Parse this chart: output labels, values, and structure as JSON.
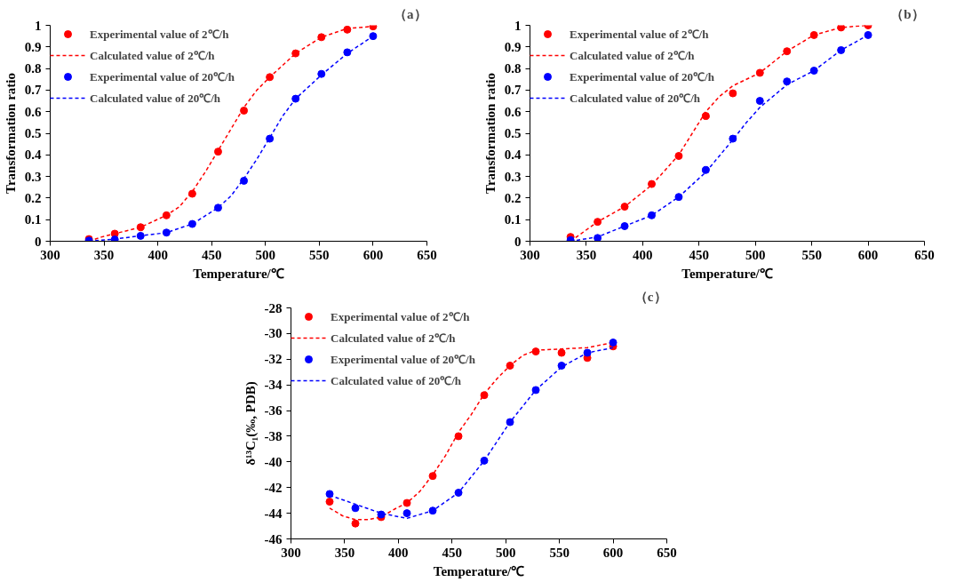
{
  "chart_data": [
    {
      "type": "line",
      "xlabel": "Temperature/℃",
      "ylabel": "Transformation ratio",
      "annotations": [
        "（a）"
      ],
      "xlim": [
        300,
        650
      ],
      "xticks": [
        300,
        350,
        400,
        450,
        500,
        550,
        600,
        650
      ],
      "ylim": [
        0,
        1
      ],
      "yticks": [
        0,
        0.1,
        0.2,
        0.3,
        0.4,
        0.5,
        0.6,
        0.7,
        0.8,
        0.9,
        1
      ],
      "legend": "top left",
      "series": [
        {
          "name": "Experimental value of 2℃/h",
          "type": "scatter",
          "marker": "circle",
          "color": "#ff0000",
          "x": [
            336,
            360,
            384,
            408,
            432,
            456,
            480,
            504,
            528,
            552,
            576,
            600
          ],
          "values": [
            0.01,
            0.035,
            0.065,
            0.12,
            0.22,
            0.415,
            0.605,
            0.76,
            0.87,
            0.945,
            0.98,
            0.995
          ]
        },
        {
          "name": "Calculated value of 2℃/h",
          "line_style": "dashed",
          "color": "#ff0000",
          "x": [
            336,
            348,
            360,
            384,
            408,
            420,
            432,
            444,
            456,
            468,
            480,
            492,
            504,
            528,
            552,
            576,
            600
          ],
          "values": [
            0.0,
            0.02,
            0.035,
            0.065,
            0.12,
            0.16,
            0.23,
            0.32,
            0.42,
            0.52,
            0.62,
            0.7,
            0.76,
            0.87,
            0.945,
            0.985,
            0.995
          ]
        },
        {
          "name": "Experimental value of 20℃/h",
          "type": "scatter",
          "marker": "circle",
          "color": "#0000ff",
          "x": [
            336,
            360,
            384,
            408,
            432,
            456,
            480,
            504,
            528,
            552,
            576,
            600
          ],
          "values": [
            0.003,
            0.008,
            0.025,
            0.04,
            0.08,
            0.155,
            0.28,
            0.475,
            0.66,
            0.775,
            0.875,
            0.95
          ]
        },
        {
          "name": "Calculated value of 20℃/h",
          "line_style": "dashed",
          "color": "#0000ff",
          "x": [
            336,
            360,
            384,
            408,
            432,
            456,
            468,
            480,
            492,
            504,
            516,
            528,
            552,
            576,
            600
          ],
          "values": [
            0.0,
            0.01,
            0.025,
            0.04,
            0.08,
            0.155,
            0.21,
            0.29,
            0.38,
            0.48,
            0.58,
            0.66,
            0.77,
            0.87,
            0.95
          ]
        }
      ]
    },
    {
      "type": "line",
      "xlabel": "Temperature/℃",
      "ylabel": "Transformation ratio",
      "annotations": [
        "（b）"
      ],
      "xlim": [
        300,
        650
      ],
      "xticks": [
        300,
        350,
        400,
        450,
        500,
        550,
        600,
        650
      ],
      "ylim": [
        0,
        1
      ],
      "yticks": [
        0,
        0.1,
        0.2,
        0.3,
        0.4,
        0.5,
        0.6,
        0.7,
        0.8,
        0.9,
        1
      ],
      "legend": "top left",
      "series": [
        {
          "name": "Experimental value of 2℃/h",
          "type": "scatter",
          "marker": "circle",
          "color": "#ff0000",
          "x": [
            336,
            360,
            384,
            408,
            432,
            456,
            480,
            504,
            528,
            552,
            576,
            600
          ],
          "values": [
            0.02,
            0.09,
            0.16,
            0.265,
            0.395,
            0.58,
            0.685,
            0.78,
            0.88,
            0.955,
            0.99,
            1.0
          ]
        },
        {
          "name": "Calculated value of 2℃/h",
          "line_style": "dashed",
          "color": "#ff0000",
          "x": [
            336,
            360,
            384,
            408,
            432,
            444,
            456,
            468,
            480,
            504,
            528,
            552,
            576,
            600
          ],
          "values": [
            0.0,
            0.09,
            0.16,
            0.26,
            0.4,
            0.5,
            0.6,
            0.67,
            0.72,
            0.78,
            0.88,
            0.955,
            0.99,
            1.0
          ]
        },
        {
          "name": "Experimental value of 20℃/h",
          "type": "scatter",
          "marker": "circle",
          "color": "#0000ff",
          "x": [
            336,
            360,
            384,
            408,
            432,
            456,
            480,
            504,
            528,
            552,
            576,
            600
          ],
          "values": [
            0.005,
            0.015,
            0.07,
            0.12,
            0.205,
            0.33,
            0.475,
            0.65,
            0.74,
            0.79,
            0.885,
            0.955
          ]
        },
        {
          "name": "Calculated value of 20℃/h",
          "line_style": "dashed",
          "color": "#0000ff",
          "x": [
            336,
            360,
            384,
            408,
            432,
            456,
            480,
            492,
            504,
            528,
            552,
            576,
            600
          ],
          "values": [
            0.0,
            0.02,
            0.07,
            0.12,
            0.205,
            0.32,
            0.47,
            0.55,
            0.62,
            0.725,
            0.79,
            0.885,
            0.955
          ]
        }
      ]
    },
    {
      "type": "line",
      "xlabel": "Temperature/℃",
      "ylabel": "δ¹³C₁(‰, PDB)",
      "annotations": [
        "（c）"
      ],
      "xlim": [
        300,
        650
      ],
      "xticks": [
        300,
        350,
        400,
        450,
        500,
        550,
        600,
        650
      ],
      "ylim": [
        -46,
        -28
      ],
      "yticks": [
        -46,
        -44,
        -42,
        -40,
        -38,
        -36,
        -34,
        -32,
        -30,
        -28
      ],
      "legend": "top left",
      "series": [
        {
          "name": "Experimental value of 2℃/h",
          "type": "scatter",
          "marker": "circle",
          "color": "#ff0000",
          "x": [
            336,
            360,
            384,
            408,
            432,
            456,
            480,
            504,
            528,
            552,
            576,
            600
          ],
          "values": [
            -43.1,
            -44.8,
            -44.3,
            -43.2,
            -41.1,
            -38.0,
            -34.8,
            -32.5,
            -31.4,
            -31.5,
            -31.9,
            -31.0
          ]
        },
        {
          "name": "Calculated value of 2℃/h",
          "line_style": "dashed",
          "color": "#ff0000",
          "x": [
            336,
            348,
            360,
            372,
            384,
            396,
            408,
            420,
            432,
            444,
            456,
            468,
            480,
            492,
            504,
            516,
            528,
            552,
            576,
            600
          ],
          "values": [
            -43.6,
            -44.2,
            -44.5,
            -44.5,
            -44.3,
            -43.7,
            -43.2,
            -42.3,
            -41.0,
            -39.5,
            -37.7,
            -36.3,
            -34.7,
            -33.5,
            -32.5,
            -31.7,
            -31.3,
            -31.2,
            -31.1,
            -30.7
          ]
        },
        {
          "name": "Experimental value of 20℃/h",
          "type": "scatter",
          "marker": "circle",
          "color": "#0000ff",
          "x": [
            336,
            360,
            384,
            408,
            432,
            456,
            480,
            504,
            528,
            552,
            576,
            600
          ],
          "values": [
            -42.5,
            -43.6,
            -44.1,
            -44.0,
            -43.8,
            -42.4,
            -39.9,
            -36.9,
            -34.4,
            -32.5,
            -31.5,
            -30.7
          ]
        },
        {
          "name": "Calculated value of 20℃/h",
          "line_style": "dashed",
          "color": "#0000ff",
          "x": [
            336,
            360,
            384,
            408,
            432,
            456,
            480,
            504,
            528,
            552,
            576,
            600
          ],
          "values": [
            -42.6,
            -43.3,
            -44.0,
            -44.4,
            -43.8,
            -42.4,
            -39.9,
            -36.9,
            -34.4,
            -32.6,
            -31.5,
            -31.1
          ]
        }
      ]
    }
  ]
}
